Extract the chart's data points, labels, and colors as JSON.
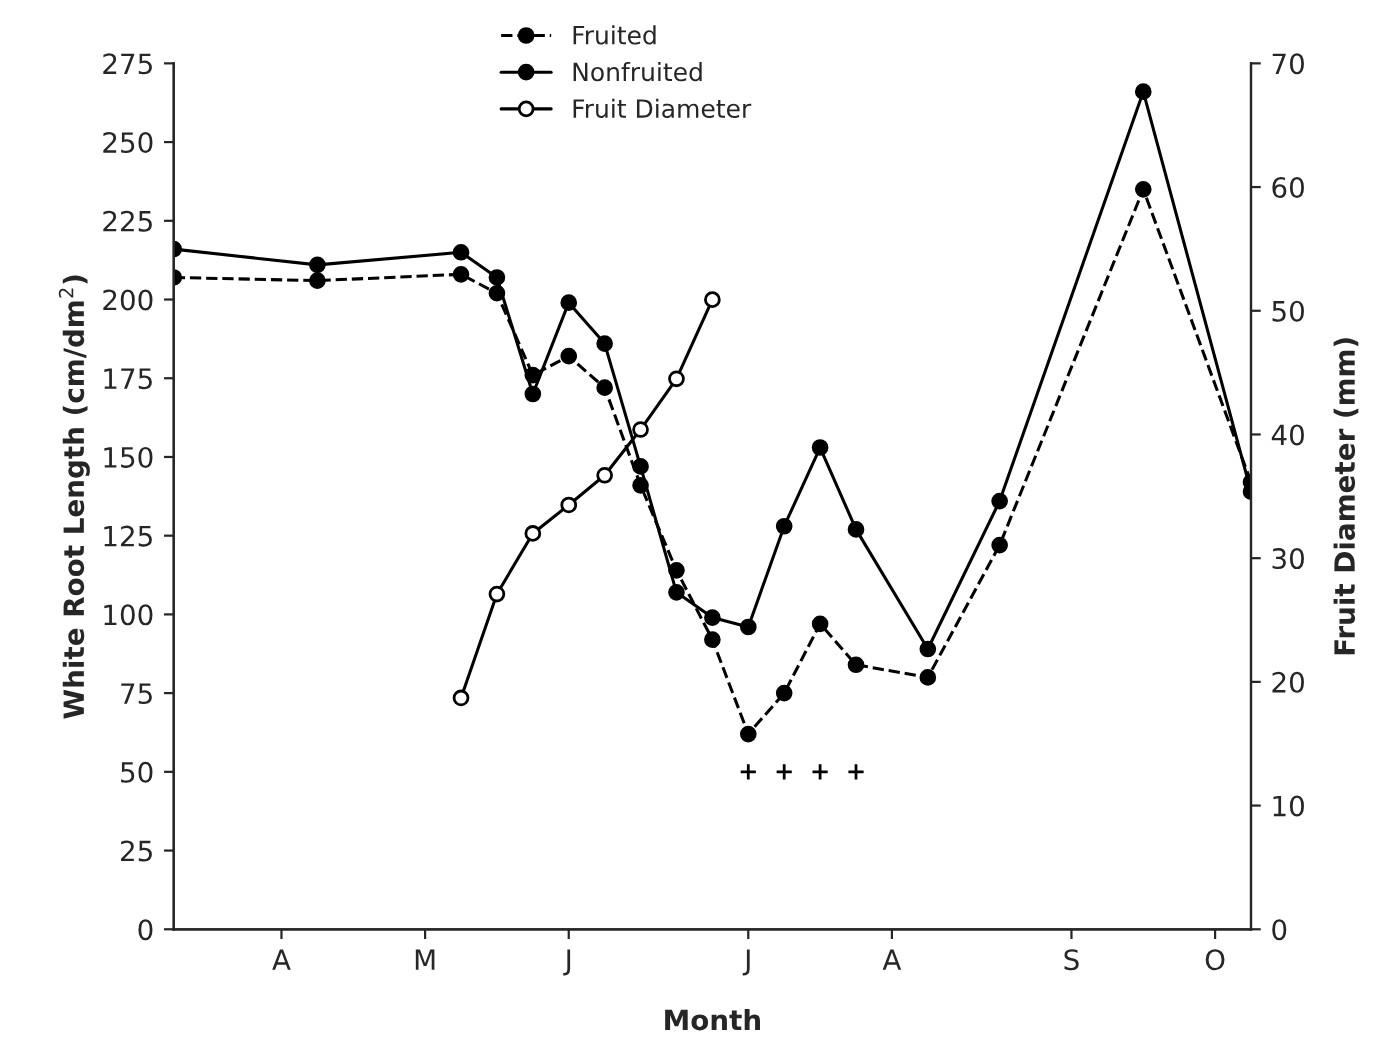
{
  "chart_data": {
    "type": "line",
    "xlabel": "Month",
    "ylabel": "White Root Length (cm/dm$^{2}$)",
    "y2label": "Fruit Diameter (mm)",
    "categories": [
      null,
      null,
      null,
      "A",
      null,
      null,
      null,
      "M",
      null,
      null,
      null,
      "J",
      null,
      null,
      null,
      null,
      "J",
      null,
      null,
      null,
      "A",
      null,
      null,
      null,
      null,
      "S",
      null,
      null,
      null,
      "O",
      null
    ],
    "ylim": [
      0,
      275
    ],
    "yticks": [
      0,
      25,
      50,
      75,
      100,
      125,
      150,
      175,
      200,
      225,
      250,
      275
    ],
    "y2lim": [
      0,
      70
    ],
    "y2ticks": [
      0,
      10,
      20,
      30,
      40,
      50,
      60,
      70
    ],
    "legend": "top",
    "grid": false,
    "series": [
      {
        "name": "Fruited",
        "color": "#000000",
        "line_style": "dashed",
        "marker": "circle",
        "values": [
          207,
          null,
          null,
          null,
          206,
          null,
          null,
          null,
          208,
          202,
          176,
          182,
          172,
          141,
          114,
          92,
          62,
          75,
          97,
          84,
          null,
          80,
          null,
          122,
          null,
          null,
          null,
          235,
          null,
          null,
          142
        ]
      },
      {
        "name": "Nonfruited",
        "color": "#000000",
        "line_style": "solid",
        "marker": "circle",
        "values": [
          216,
          null,
          null,
          null,
          211,
          null,
          null,
          null,
          215,
          207,
          170,
          199,
          186,
          147,
          107,
          99,
          96,
          128,
          153,
          127,
          null,
          89,
          null,
          136,
          null,
          null,
          null,
          266,
          null,
          null,
          139
        ]
      },
      {
        "name": "Fruit Diameter",
        "color": "#000000",
        "line_style": "solid",
        "marker": "open circle",
        "axis": "y2",
        "values": [
          null,
          null,
          null,
          null,
          null,
          null,
          null,
          null,
          18.7,
          27.1,
          32,
          34.3,
          36.7,
          40.4,
          44.5,
          50.9,
          null,
          null,
          null,
          null,
          null,
          null,
          null,
          null,
          null,
          null,
          null,
          null,
          null,
          null,
          null
        ]
      },
      {
        "type": "scatter",
        "color": "#000000",
        "marker": "cross",
        "values": [
          null,
          null,
          null,
          null,
          null,
          null,
          null,
          null,
          null,
          null,
          null,
          null,
          null,
          null,
          null,
          null,
          50,
          50,
          50,
          50,
          null,
          null,
          null,
          null,
          null,
          null,
          null,
          null,
          null,
          null,
          null
        ]
      }
    ]
  }
}
